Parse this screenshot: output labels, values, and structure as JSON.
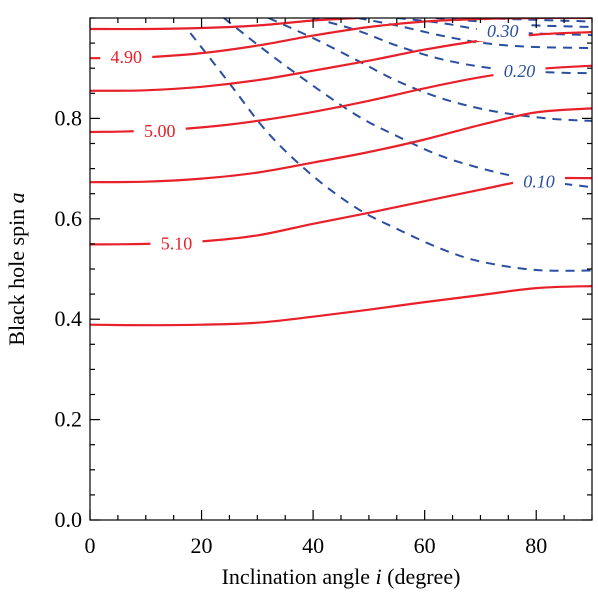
{
  "chart_data": {
    "type": "line",
    "title": "",
    "xlabel": "Inclination angle i (degree)",
    "xlabel_prefix": "Inclination angle ",
    "xlabel_var": "i",
    "xlabel_suffix": " (degree)",
    "ylabel": "Black hole spin a",
    "ylabel_prefix": "Black hole spin ",
    "ylabel_var": "a",
    "xlim": [
      0,
      90
    ],
    "ylim": [
      0,
      1
    ],
    "xticks": [
      "0",
      "20",
      "40",
      "60",
      "80"
    ],
    "xtick_values": [
      0,
      20,
      40,
      60,
      80
    ],
    "yticks": [
      "0.0",
      "0.2",
      "0.4",
      "0.6",
      "0.8"
    ],
    "ytick_values": [
      0.0,
      0.2,
      0.4,
      0.6,
      0.8
    ],
    "x_minor_step": 5,
    "y_minor_step": 0.05,
    "grid": false,
    "legend": "none",
    "colors": {
      "solid": "#e8202a",
      "dashed": "#2a4fa0",
      "axis": "#000000"
    },
    "solid_contours": [
      {
        "label": "",
        "points": [
          [
            0,
            0.978
          ],
          [
            10,
            0.978
          ],
          [
            20,
            0.98
          ],
          [
            30,
            0.985
          ],
          [
            40,
            0.995
          ],
          [
            48,
            1.0
          ]
        ]
      },
      {
        "label": "4.90",
        "points": [
          [
            0,
            0.92
          ],
          [
            10,
            0.922
          ],
          [
            20,
            0.93
          ],
          [
            30,
            0.945
          ],
          [
            40,
            0.965
          ],
          [
            50,
            0.982
          ],
          [
            60,
            0.993
          ],
          [
            70,
            0.998
          ],
          [
            80,
            1.0
          ],
          [
            90,
            1.0
          ]
        ]
      },
      {
        "label": "",
        "points": [
          [
            0,
            0.855
          ],
          [
            10,
            0.856
          ],
          [
            20,
            0.863
          ],
          [
            30,
            0.876
          ],
          [
            40,
            0.895
          ],
          [
            50,
            0.915
          ],
          [
            60,
            0.937
          ],
          [
            70,
            0.955
          ],
          [
            80,
            0.967
          ],
          [
            90,
            0.972
          ]
        ]
      },
      {
        "label": "5.00",
        "points": [
          [
            0,
            0.773
          ],
          [
            10,
            0.775
          ],
          [
            20,
            0.782
          ],
          [
            30,
            0.795
          ],
          [
            40,
            0.813
          ],
          [
            50,
            0.835
          ],
          [
            60,
            0.86
          ],
          [
            70,
            0.882
          ],
          [
            80,
            0.898
          ],
          [
            90,
            0.905
          ]
        ]
      },
      {
        "label": "",
        "points": [
          [
            0,
            0.673
          ],
          [
            10,
            0.674
          ],
          [
            20,
            0.68
          ],
          [
            30,
            0.692
          ],
          [
            40,
            0.712
          ],
          [
            50,
            0.733
          ],
          [
            60,
            0.758
          ],
          [
            70,
            0.787
          ],
          [
            80,
            0.812
          ],
          [
            90,
            0.82
          ]
        ]
      },
      {
        "label": "5.10",
        "points": [
          [
            0,
            0.549
          ],
          [
            10,
            0.55
          ],
          [
            20,
            0.555
          ],
          [
            30,
            0.567
          ],
          [
            40,
            0.59
          ],
          [
            50,
            0.612
          ],
          [
            60,
            0.635
          ],
          [
            70,
            0.658
          ],
          [
            80,
            0.679
          ],
          [
            90,
            0.681
          ]
        ]
      },
      {
        "label": "",
        "points": [
          [
            0,
            0.389
          ],
          [
            10,
            0.388
          ],
          [
            20,
            0.389
          ],
          [
            30,
            0.393
          ],
          [
            40,
            0.405
          ],
          [
            50,
            0.419
          ],
          [
            60,
            0.434
          ],
          [
            70,
            0.448
          ],
          [
            80,
            0.462
          ],
          [
            90,
            0.466
          ]
        ]
      }
    ],
    "dashed_contours": [
      {
        "label": "",
        "points": [
          [
            18,
            0.97
          ],
          [
            25,
            0.87
          ],
          [
            32,
            0.77
          ],
          [
            40,
            0.685
          ],
          [
            48,
            0.62
          ],
          [
            55,
            0.58
          ],
          [
            63,
            0.54
          ],
          [
            70,
            0.515
          ],
          [
            80,
            0.498
          ],
          [
            90,
            0.497
          ]
        ]
      },
      {
        "label": "0.10",
        "points": [
          [
            24,
            1.0
          ],
          [
            32,
            0.93
          ],
          [
            40,
            0.865
          ],
          [
            48,
            0.805
          ],
          [
            55,
            0.765
          ],
          [
            63,
            0.725
          ],
          [
            72,
            0.695
          ],
          [
            80,
            0.677
          ],
          [
            90,
            0.663
          ]
        ]
      },
      {
        "label": "",
        "points": [
          [
            32,
            1.0
          ],
          [
            40,
            0.96
          ],
          [
            48,
            0.915
          ],
          [
            55,
            0.875
          ],
          [
            63,
            0.84
          ],
          [
            72,
            0.815
          ],
          [
            82,
            0.8
          ],
          [
            90,
            0.795
          ]
        ]
      },
      {
        "label": "0.20",
        "points": [
          [
            40,
            1.0
          ],
          [
            48,
            0.975
          ],
          [
            55,
            0.945
          ],
          [
            63,
            0.918
          ],
          [
            72,
            0.9
          ],
          [
            82,
            0.892
          ],
          [
            90,
            0.89
          ]
        ]
      },
      {
        "label": "",
        "points": [
          [
            48,
            1.0
          ],
          [
            55,
            0.985
          ],
          [
            63,
            0.965
          ],
          [
            70,
            0.951
          ],
          [
            78,
            0.943
          ],
          [
            90,
            0.94
          ]
        ]
      },
      {
        "label": "0.30",
        "points": [
          [
            55,
            1.0
          ],
          [
            63,
            0.99
          ],
          [
            70,
            0.977
          ],
          [
            78,
            0.97
          ],
          [
            90,
            0.966
          ]
        ]
      },
      {
        "label": "",
        "points": [
          [
            62,
            1.0
          ],
          [
            70,
            0.993
          ],
          [
            78,
            0.986
          ],
          [
            90,
            0.982
          ]
        ]
      },
      {
        "label": "",
        "points": [
          [
            70,
            1.0
          ],
          [
            78,
            0.997
          ],
          [
            90,
            0.993
          ]
        ]
      }
    ],
    "contour_labels": [
      {
        "text": "4.90",
        "style": "solid",
        "x": 6.5,
        "y": 0.922
      },
      {
        "text": "5.00",
        "style": "solid",
        "x": 12.5,
        "y": 0.775
      },
      {
        "text": "5.10",
        "style": "solid",
        "x": 15.5,
        "y": 0.551
      },
      {
        "text": "0.30",
        "style": "dashed",
        "x": 74.0,
        "y": 0.974
      },
      {
        "text": "0.20",
        "style": "dashed",
        "x": 77.0,
        "y": 0.894
      },
      {
        "text": "0.10",
        "style": "dashed",
        "x": 80.5,
        "y": 0.674
      }
    ]
  }
}
